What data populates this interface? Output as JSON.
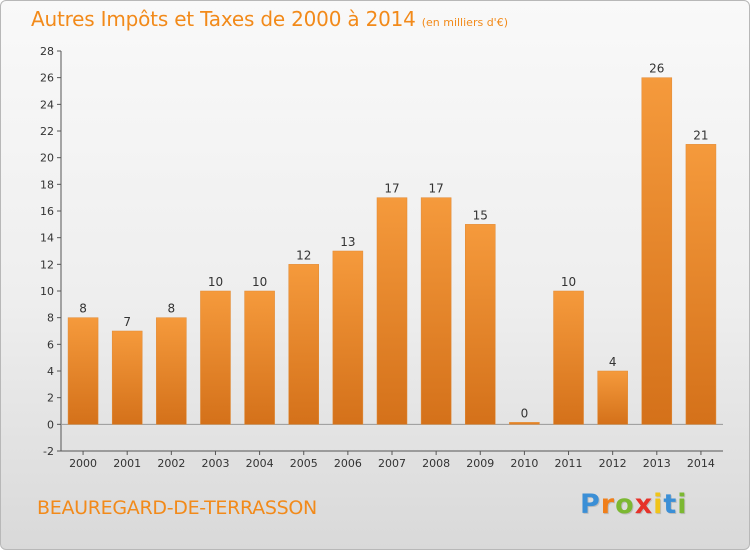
{
  "chart_data": {
    "type": "bar",
    "title": "Autres Impôts et Taxes de 2000 à 2014",
    "unit_label": "(en milliers d'€)",
    "categories": [
      "2000",
      "2001",
      "2002",
      "2003",
      "2004",
      "2005",
      "2006",
      "2007",
      "2008",
      "2009",
      "2010",
      "2011",
      "2012",
      "2013",
      "2014"
    ],
    "values": [
      8,
      7,
      8,
      10,
      10,
      12,
      13,
      17,
      17,
      15,
      0,
      10,
      4,
      26,
      21
    ],
    "value_labels": [
      "8",
      "7",
      "8",
      "10",
      "10",
      "12",
      "13",
      "17",
      "17",
      "15",
      "0",
      "10",
      "4",
      "26",
      "21"
    ],
    "ylim": [
      -2,
      28
    ],
    "yticks": [
      -2,
      0,
      2,
      4,
      6,
      8,
      10,
      12,
      14,
      16,
      18,
      20,
      22,
      24,
      26,
      28
    ],
    "ytick_labels": [
      "-2",
      "0",
      "2",
      "4",
      "6",
      "8",
      "10",
      "12",
      "14",
      "16",
      "18",
      "20",
      "22",
      "24",
      "26",
      "28"
    ],
    "grid": false,
    "bar_color": "#f59a3c",
    "bar_color_dark": "#d4711a",
    "axis_color": "#555555"
  },
  "footer": {
    "commune": "BEAUREGARD-DE-TERRASSON",
    "logo_letters": [
      "P",
      "r",
      "o",
      "x",
      "i",
      "t",
      "i"
    ],
    "logo_colors": [
      "#3b8fd6",
      "#f07f1a",
      "#7cb832",
      "#e6322a",
      "#f0c419",
      "#3b8fd6",
      "#7cb832"
    ]
  }
}
